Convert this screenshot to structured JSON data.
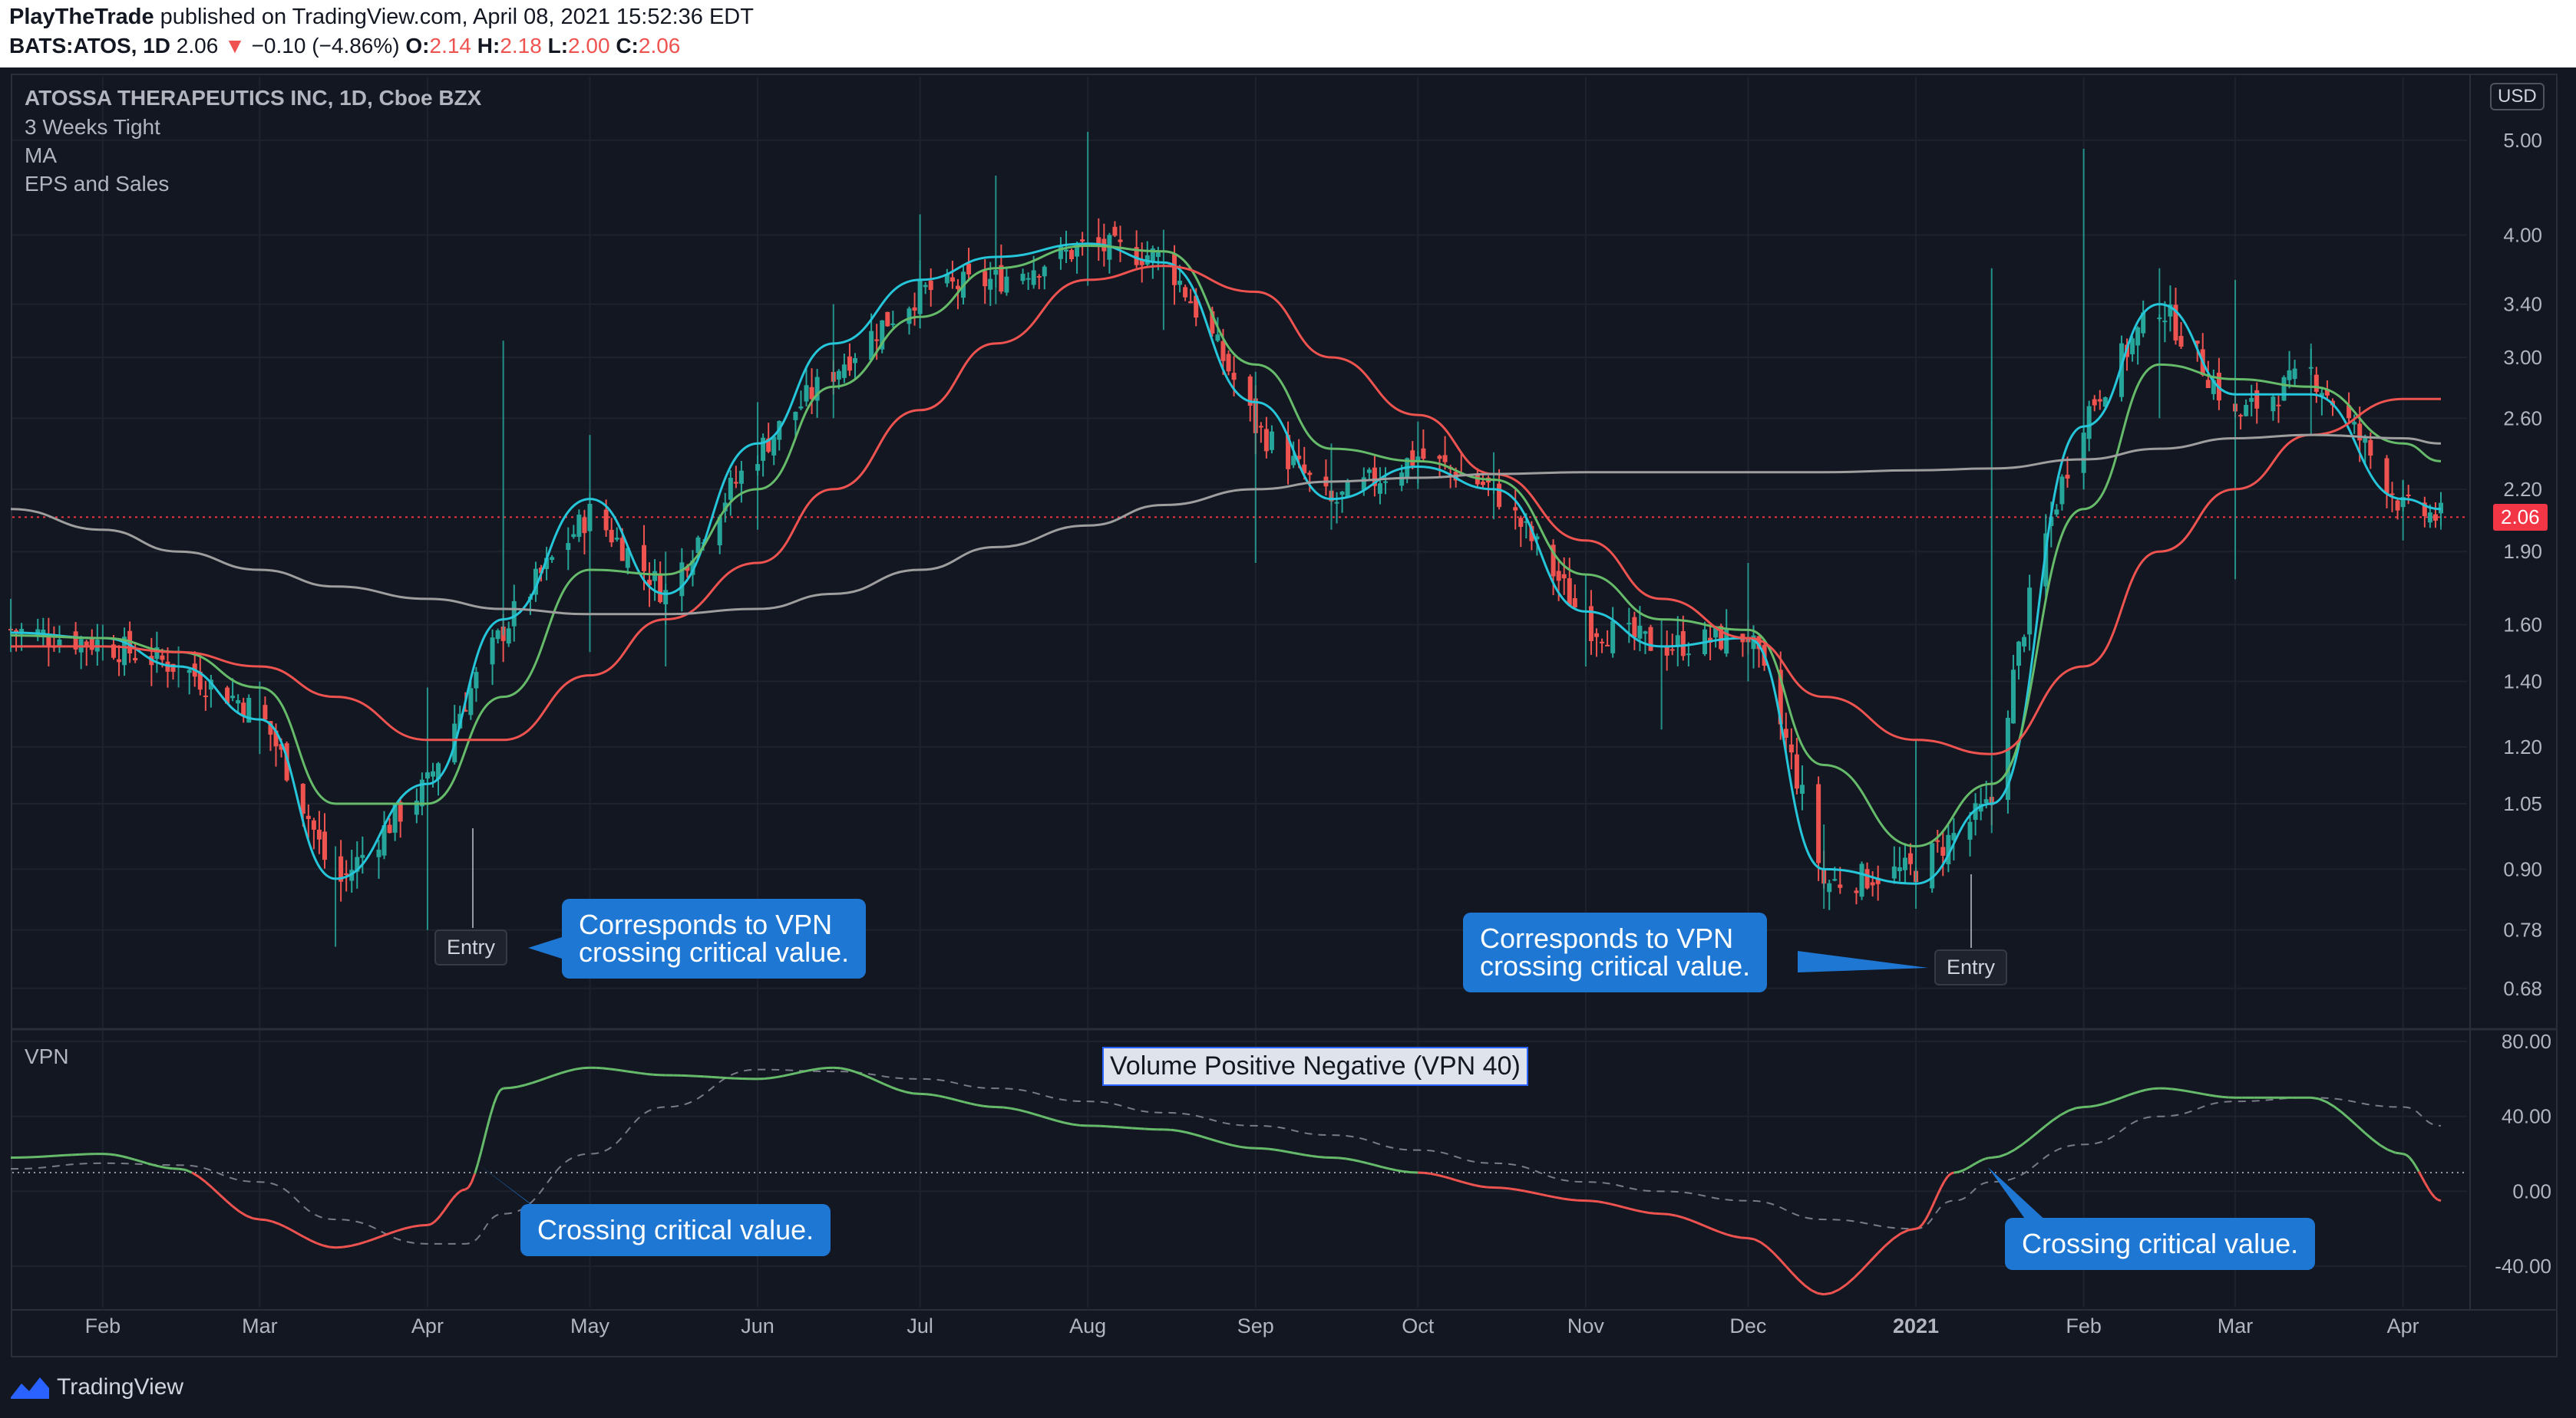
{
  "header": {
    "author": "PlayTheTrade",
    "published_text": "published on TradingView.com, April 08, 2021 15:52:36 EDT",
    "symbol": "BATS:ATOS, 1D",
    "price": "2.06",
    "change_arrow": "▼",
    "change": "−0.10 (−4.86%)",
    "o_label": "O:",
    "o": "2.14",
    "h_label": "H:",
    "h": "2.18",
    "l_label": "L:",
    "l": "2.00",
    "c_label": "C:",
    "c": "2.06"
  },
  "legend": {
    "title": "ATOSSA THERAPEUTICS INC, 1D, Cboe BZX",
    "indicators": [
      "3 Weeks Tight",
      "MA",
      "EPS and Sales"
    ]
  },
  "currency": "USD",
  "last_price_label": "2.06",
  "vpn_pane": {
    "label": "VPN",
    "title": "Volume Positive Negative (VPN 40)"
  },
  "annotations": {
    "entry_label": "Entry",
    "callout_price_line1": "Corresponds to VPN",
    "callout_price_line2": "crossing critical value.",
    "callout_vpn": "Crossing critical value."
  },
  "footer": {
    "brand": "TradingView"
  },
  "colors": {
    "background": "#131722",
    "ma_fast": "#26c6da",
    "ma_mid": "#66bb6a",
    "ma_slow": "#ef5350",
    "ma_long": "#9e9e9e",
    "vpn_positive": "#66bb6a",
    "vpn_negative": "#ef5350",
    "callout": "#1e77d3"
  },
  "chart_data": [
    {
      "type": "line",
      "pane": "price",
      "title": "ATOSSA THERAPEUTICS INC, 1D, Cboe BZX",
      "y_scale": "log",
      "ylim": [
        0.62,
        5.6
      ],
      "y_ticks": [
        "5.00",
        "4.00",
        "3.40",
        "3.00",
        "2.60",
        "2.20",
        "1.90",
        "1.60",
        "1.40",
        "1.20",
        "1.05",
        "0.90",
        "0.78",
        "0.68"
      ],
      "x_ticks": [
        "Feb",
        "Mar",
        "Apr",
        "May",
        "Jun",
        "Jul",
        "Aug",
        "Sep",
        "Oct",
        "Nov",
        "Dec",
        "2021",
        "Feb",
        "Mar",
        "Apr"
      ],
      "x": [
        "2020-01-15",
        "2020-02-01",
        "2020-02-15",
        "2020-03-01",
        "2020-03-15",
        "2020-04-01",
        "2020-04-15",
        "2020-05-01",
        "2020-05-15",
        "2020-06-01",
        "2020-06-15",
        "2020-07-01",
        "2020-07-15",
        "2020-08-01",
        "2020-08-15",
        "2020-09-01",
        "2020-09-15",
        "2020-10-01",
        "2020-10-15",
        "2020-11-01",
        "2020-11-15",
        "2020-12-01",
        "2020-12-15",
        "2021-01-01",
        "2021-01-15",
        "2021-02-01",
        "2021-02-15",
        "2021-03-01",
        "2021-03-15",
        "2021-04-01",
        "2021-04-08"
      ],
      "close": [
        1.58,
        1.53,
        1.45,
        1.3,
        0.86,
        1.1,
        1.58,
        2.08,
        1.72,
        2.4,
        2.9,
        3.5,
        3.6,
        3.9,
        3.8,
        2.55,
        2.12,
        2.38,
        2.2,
        1.6,
        1.52,
        1.56,
        0.87,
        0.9,
        1.05,
        2.6,
        3.4,
        2.6,
        2.9,
        2.1,
        2.06
      ],
      "high": [
        1.7,
        1.6,
        1.52,
        1.4,
        0.95,
        1.38,
        3.12,
        2.5,
        1.9,
        2.7,
        3.4,
        4.2,
        4.6,
        5.1,
        4.05,
        2.9,
        2.45,
        2.58,
        2.4,
        1.8,
        1.62,
        1.85,
        1.0,
        1.22,
        3.7,
        4.9,
        3.7,
        3.6,
        3.1,
        2.25,
        2.18
      ],
      "low": [
        1.5,
        1.47,
        1.38,
        1.18,
        0.75,
        0.78,
        1.56,
        1.5,
        1.45,
        2.0,
        2.6,
        3.3,
        3.4,
        3.55,
        3.2,
        1.85,
        2.0,
        2.2,
        2.05,
        1.45,
        1.25,
        1.4,
        0.82,
        0.82,
        0.98,
        2.3,
        2.6,
        1.78,
        2.5,
        1.95,
        2.0
      ],
      "series": [
        {
          "values": [
            1.57,
            1.55,
            1.45,
            1.28,
            0.88,
            1.1,
            1.62,
            2.15,
            1.72,
            2.45,
            3.1,
            3.6,
            3.8,
            3.92,
            3.75,
            2.7,
            2.15,
            2.32,
            2.2,
            1.65,
            1.52,
            1.55,
            0.9,
            0.87,
            1.05,
            2.55,
            3.4,
            2.75,
            2.75,
            2.15,
            2.1
          ]
        },
        {
          "values": [
            1.56,
            1.55,
            1.5,
            1.38,
            1.05,
            1.05,
            1.35,
            1.82,
            1.8,
            2.2,
            2.8,
            3.3,
            3.7,
            3.9,
            3.85,
            2.95,
            2.42,
            2.35,
            2.25,
            1.8,
            1.62,
            1.58,
            1.15,
            0.95,
            1.1,
            2.1,
            2.95,
            2.85,
            2.8,
            2.45,
            2.35
          ]
        },
        {
          "values": [
            1.52,
            1.52,
            1.5,
            1.45,
            1.35,
            1.22,
            1.22,
            1.42,
            1.62,
            1.85,
            2.2,
            2.65,
            3.1,
            3.6,
            3.72,
            3.5,
            3.0,
            2.62,
            2.28,
            1.95,
            1.7,
            1.55,
            1.35,
            1.22,
            1.18,
            1.45,
            1.9,
            2.2,
            2.5,
            2.72,
            2.72
          ]
        },
        {
          "values": [
            2.1,
            2.0,
            1.9,
            1.82,
            1.75,
            1.7,
            1.66,
            1.64,
            1.64,
            1.66,
            1.72,
            1.82,
            1.92,
            2.02,
            2.12,
            2.2,
            2.24,
            2.26,
            2.28,
            2.29,
            2.29,
            2.29,
            2.29,
            2.3,
            2.31,
            2.36,
            2.42,
            2.48,
            2.5,
            2.48,
            2.45
          ]
        }
      ]
    },
    {
      "type": "line",
      "pane": "indicator",
      "title": "Volume Positive Negative (VPN 40)",
      "ylim": [
        -60,
        80
      ],
      "y_ticks": [
        "80.00",
        "40.00",
        "0.00",
        "-40.00"
      ],
      "critical_value": 10,
      "x": [
        "2020-01-15",
        "2020-02-01",
        "2020-02-15",
        "2020-03-01",
        "2020-03-15",
        "2020-04-01",
        "2020-04-08",
        "2020-04-15",
        "2020-05-01",
        "2020-05-15",
        "2020-06-01",
        "2020-06-15",
        "2020-07-01",
        "2020-07-15",
        "2020-08-01",
        "2020-08-15",
        "2020-09-01",
        "2020-09-15",
        "2020-10-01",
        "2020-10-15",
        "2020-11-01",
        "2020-11-15",
        "2020-12-01",
        "2020-12-15",
        "2021-01-01",
        "2021-01-08",
        "2021-01-15",
        "2021-02-01",
        "2021-02-15",
        "2021-03-01",
        "2021-03-15",
        "2021-04-01",
        "2021-04-08"
      ],
      "series": [
        {
          "values": [
            18,
            20,
            12,
            -15,
            -30,
            -18,
            1,
            55,
            66,
            62,
            60,
            66,
            52,
            45,
            35,
            33,
            23,
            18,
            10,
            2,
            -5,
            -12,
            -25,
            -55,
            -20,
            10,
            18,
            45,
            55,
            50,
            50,
            20,
            -5
          ]
        },
        {
          "values": [
            12,
            15,
            14,
            5,
            -15,
            -28,
            -28,
            -12,
            20,
            45,
            65,
            64,
            60,
            55,
            48,
            42,
            35,
            30,
            22,
            15,
            5,
            0,
            -5,
            -15,
            -20,
            -5,
            5,
            25,
            40,
            48,
            50,
            45,
            35
          ]
        }
      ]
    }
  ]
}
